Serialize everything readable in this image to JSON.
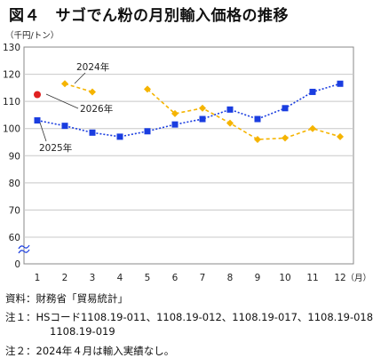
{
  "chart_data": {
    "type": "line",
    "title": "図４　サゴでん粉の月別輸入価格の推移",
    "y_unit": "（千円/トン）",
    "x_unit": "（月）",
    "x": [
      1,
      2,
      3,
      4,
      5,
      6,
      7,
      8,
      9,
      10,
      11,
      12
    ],
    "y_ticks": [
      0,
      60,
      70,
      80,
      90,
      100,
      110,
      120,
      130
    ],
    "y_axis_break": true,
    "grid": true,
    "series": [
      {
        "name": "2024年",
        "color": "#f5b400",
        "marker": "diamond",
        "style": "dashed",
        "values": [
          null,
          116.5,
          113.5,
          null,
          114.5,
          105.5,
          107.5,
          102,
          96,
          96.5,
          100,
          97
        ]
      },
      {
        "name": "2025年",
        "color": "#1a3de0",
        "marker": "square",
        "style": "dotted",
        "values": [
          103,
          101,
          98.5,
          97,
          99,
          101.5,
          103.5,
          107,
          103.5,
          107.5,
          113.5,
          116.5
        ]
      },
      {
        "name": "2026年",
        "color": "#e02020",
        "marker": "circle",
        "style": "none",
        "values": [
          112.5,
          null,
          null,
          null,
          null,
          null,
          null,
          null,
          null,
          null,
          null,
          null
        ]
      }
    ]
  },
  "notes": {
    "source": "資料：財務省「貿易統計」",
    "note1_line1": "注１：HSコード1108.19-011、1108.19-012、1108.19-017、1108.19-018、",
    "note1_line2": "1108.19-019",
    "note2": "注２：2024年４月は輸入実績なし。"
  }
}
